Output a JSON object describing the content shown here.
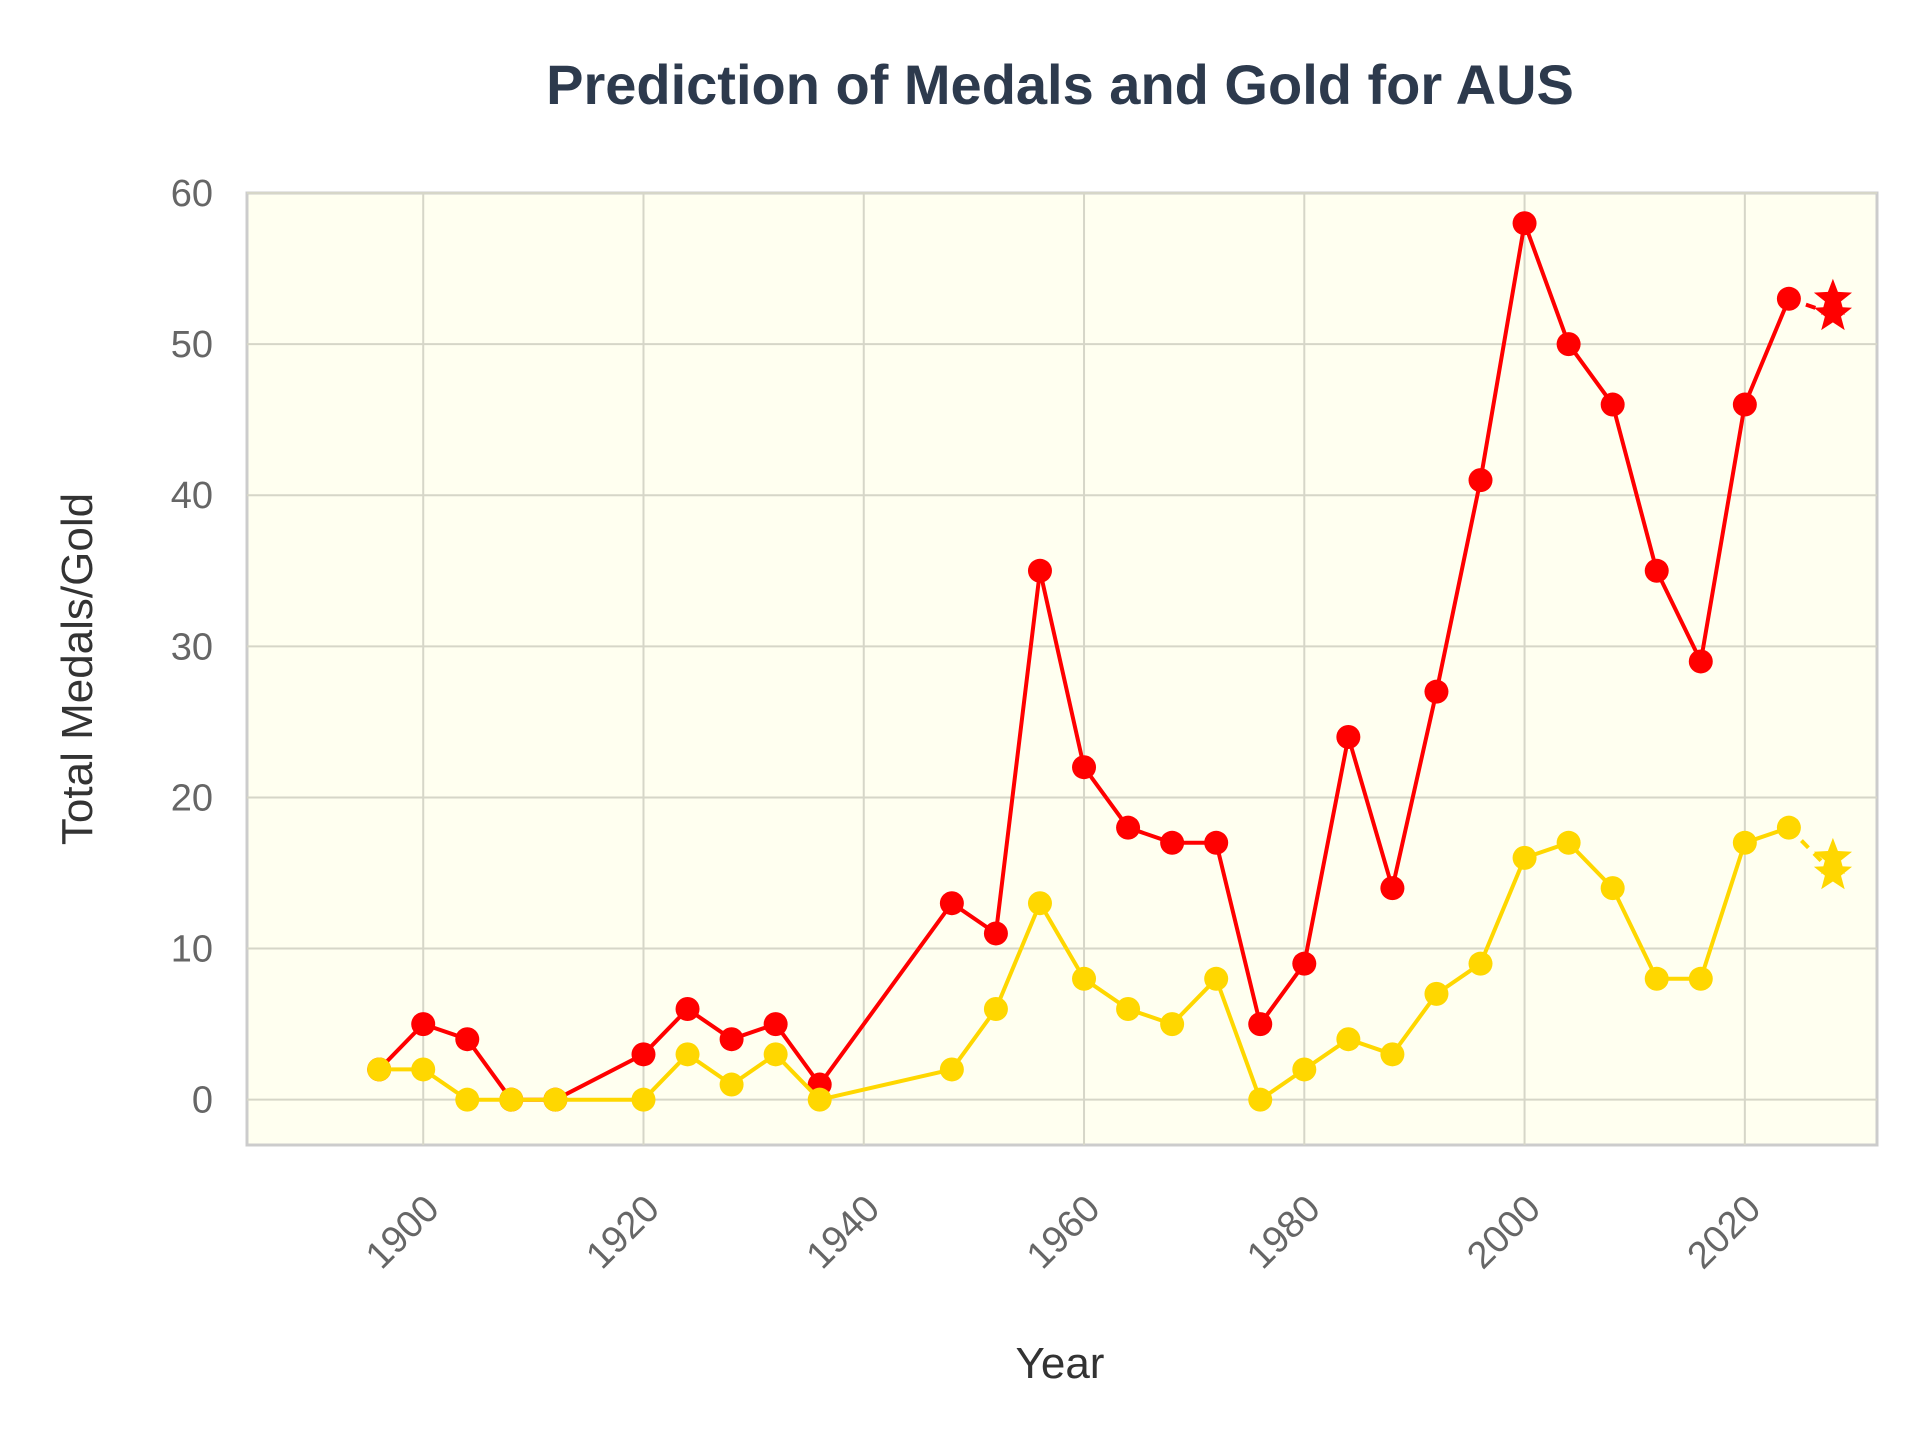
{
  "chart_data": {
    "type": "line",
    "title": "Prediction of Medals and Gold for AUS",
    "xlabel": "Year",
    "ylabel": "Total Medals/Gold",
    "xlim": [
      1884,
      2032
    ],
    "ylim": [
      -3,
      60
    ],
    "xticks": [
      1900,
      1920,
      1940,
      1960,
      1980,
      2000,
      2020
    ],
    "yticks": [
      0,
      10,
      20,
      30,
      40,
      50,
      60
    ],
    "grid": true,
    "background": "#fffff0",
    "series": [
      {
        "color": "#ff0000",
        "x": [
          1896,
          1900,
          1904,
          1908,
          1912,
          1920,
          1924,
          1928,
          1932,
          1936,
          1948,
          1952,
          1956,
          1960,
          1964,
          1968,
          1972,
          1976,
          1980,
          1984,
          1988,
          1992,
          1996,
          2000,
          2004,
          2008,
          2012,
          2016,
          2020,
          2024
        ],
        "values": [
          2,
          5,
          4,
          0,
          0,
          3,
          6,
          4,
          5,
          1,
          13,
          11,
          35,
          22,
          18,
          17,
          17,
          5,
          9,
          24,
          14,
          27,
          41,
          58,
          50,
          46,
          35,
          29,
          46,
          53
        ],
        "prediction": {
          "x": 2028,
          "values": [
            53,
            52
          ]
        }
      },
      {
        "color": "#ffd700",
        "x": [
          1896,
          1900,
          1904,
          1908,
          1912,
          1920,
          1924,
          1928,
          1932,
          1936,
          1948,
          1952,
          1956,
          1960,
          1964,
          1968,
          1972,
          1976,
          1980,
          1984,
          1988,
          1992,
          1996,
          2000,
          2004,
          2008,
          2012,
          2016,
          2020,
          2024
        ],
        "values": [
          2,
          2,
          0,
          0,
          0,
          0,
          3,
          1,
          3,
          0,
          2,
          6,
          13,
          8,
          6,
          5,
          8,
          0,
          2,
          4,
          3,
          7,
          9,
          16,
          17,
          14,
          8,
          8,
          17,
          18
        ],
        "prediction": {
          "x": 2028,
          "values": [
            16,
            15
          ]
        }
      }
    ]
  }
}
